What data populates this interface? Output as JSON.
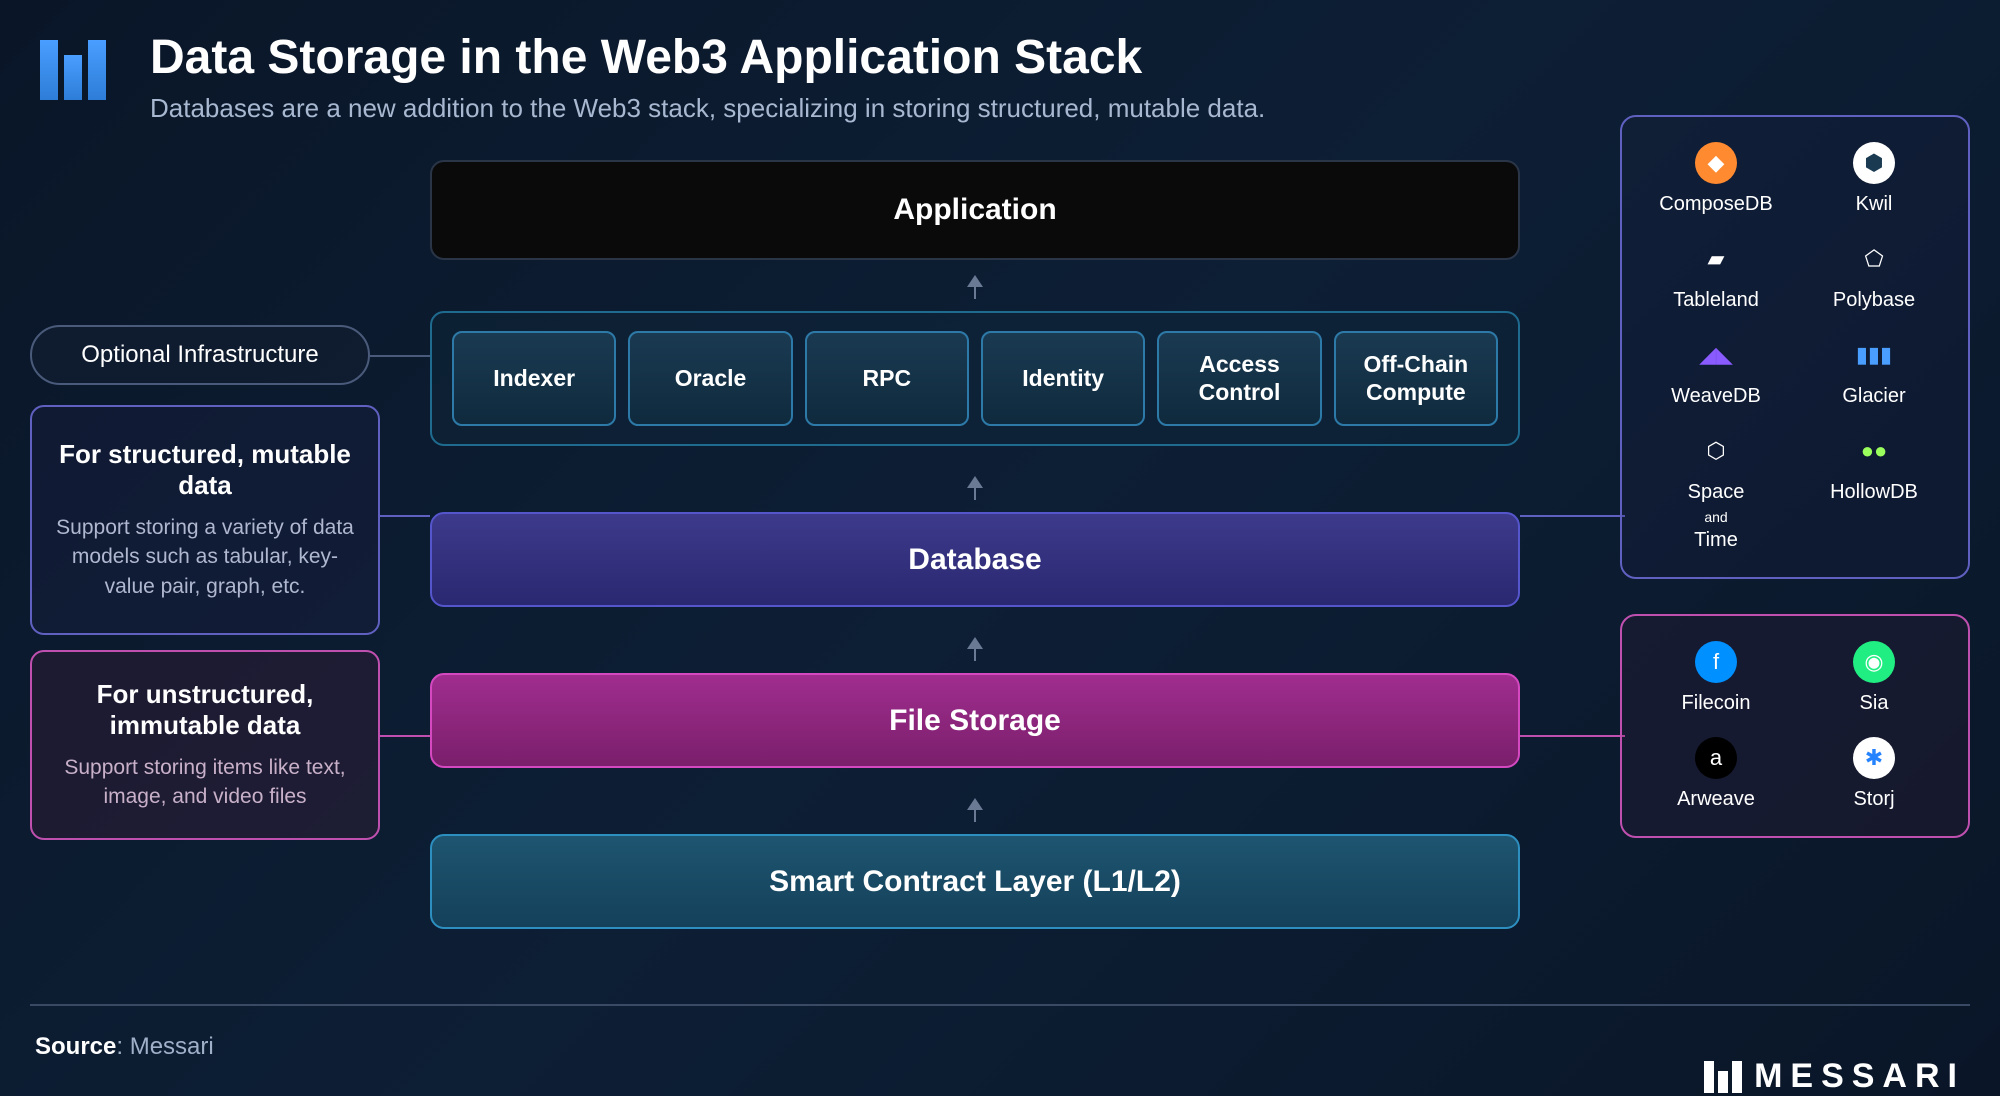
{
  "header": {
    "title": "Data Storage in the Web3 Application Stack",
    "subtitle": "Databases are a new addition to the Web3 stack, specializing in storing structured, mutable data."
  },
  "stack": {
    "application": "Application",
    "optional_label": "Optional Infrastructure",
    "optional_items": [
      "Indexer",
      "Oracle",
      "RPC",
      "Identity",
      "Access Control",
      "Off-Chain Compute"
    ],
    "database": "Database",
    "file_storage": "File Storage",
    "smart_contract": "Smart Contract Layer (L1/L2)"
  },
  "annotations": {
    "structured": {
      "heading": "For structured, mutable data",
      "body": "Support storing a variety of data models such as tabular, key-value pair, graph, etc."
    },
    "unstructured": {
      "heading": "For unstructured, immutable data",
      "body": "Support storing items like text, image, and video files"
    }
  },
  "providers": {
    "database": [
      {
        "name": "ComposeDB",
        "icon_bg": "#ff8a30",
        "glyph": "◆"
      },
      {
        "name": "Kwil",
        "icon_bg": "#ffffff",
        "glyph": "⬢",
        "fg": "#1a3a52"
      },
      {
        "name": "Tableland",
        "icon_bg": "transparent",
        "glyph": "▰",
        "fg": "#ffffff"
      },
      {
        "name": "Polybase",
        "icon_bg": "transparent",
        "glyph": "⬠",
        "fg": "#ffffff"
      },
      {
        "name": "WeaveDB",
        "icon_bg": "transparent",
        "glyph": "◢◣",
        "fg": "#8a5cff"
      },
      {
        "name": "Glacier",
        "icon_bg": "transparent",
        "glyph": "▮▮▮",
        "fg": "#4a9eff"
      },
      {
        "name": "Space and Time",
        "icon_bg": "transparent",
        "glyph": "⬡",
        "fg": "#ffffff"
      },
      {
        "name": "HollowDB",
        "icon_bg": "transparent",
        "glyph": "●●",
        "fg": "#9aff5c"
      }
    ],
    "file_storage": [
      {
        "name": "Filecoin",
        "icon_bg": "#0090ff",
        "glyph": "f",
        "fg": "#ffffff"
      },
      {
        "name": "Sia",
        "icon_bg": "#20ee82",
        "glyph": "◉",
        "fg": "#ffffff"
      },
      {
        "name": "Arweave",
        "icon_bg": "#000000",
        "glyph": "a",
        "fg": "#ffffff"
      },
      {
        "name": "Storj",
        "icon_bg": "#ffffff",
        "glyph": "✱",
        "fg": "#2683ff"
      }
    ]
  },
  "colors": {
    "background_dark": "#0a1628",
    "application_bg": "#0a0a0a",
    "application_border": "#2a3548",
    "optional_border": "#1e6b8f",
    "optional_item_bg": "#1a3a52",
    "optional_item_border": "#2d7aa8",
    "database_bg": "#3d3a8c",
    "database_border": "#5555cc",
    "filestorage_bg": "#a02d8f",
    "filestorage_border": "#d448c0",
    "smartcontract_bg": "#1e5570",
    "smartcontract_border": "#2d8fc0",
    "arrow_color": "#6a7a95",
    "text_secondary": "#a8b8d0"
  },
  "footer": {
    "source_label": "Source",
    "source_value": "Messari",
    "brand": "MESSARI"
  }
}
